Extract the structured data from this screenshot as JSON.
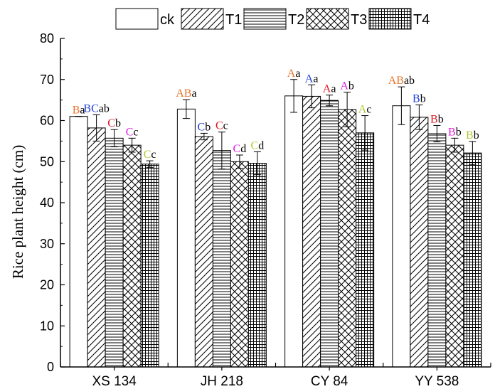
{
  "chart_data": {
    "type": "bar",
    "ylabel": "Rice plant height (cm)",
    "xlabel": "",
    "ylim": [
      0,
      80
    ],
    "yticks": [
      0,
      10,
      20,
      30,
      40,
      50,
      60,
      70,
      80
    ],
    "categories": [
      "XS 134",
      "JH 218",
      "CY 84",
      "YY 538"
    ],
    "series": [
      {
        "name": "ck",
        "pattern": "none",
        "values": [
          61.0,
          62.8,
          66.0,
          63.6
        ],
        "errors": [
          0.0,
          2.3,
          4.0,
          4.6
        ]
      },
      {
        "name": "T1",
        "pattern": "diagonal",
        "values": [
          58.2,
          56.1,
          65.9,
          60.8
        ],
        "errors": [
          3.2,
          0.8,
          2.8,
          3.0
        ]
      },
      {
        "name": "T2",
        "pattern": "horizontal",
        "values": [
          55.7,
          52.7,
          64.9,
          56.8
        ],
        "errors": [
          2.1,
          4.5,
          1.3,
          2.0
        ]
      },
      {
        "name": "T3",
        "pattern": "crosshatch",
        "values": [
          54.0,
          50.0,
          62.7,
          54.0
        ],
        "errors": [
          1.7,
          1.6,
          4.2,
          1.7
        ]
      },
      {
        "name": "T4",
        "pattern": "grid",
        "values": [
          49.4,
          49.6,
          57.0,
          52.1
        ],
        "errors": [
          0.8,
          2.8,
          4.2,
          2.8
        ]
      }
    ],
    "significance_labels": [
      [
        [
          {
            "t": "B",
            "c": "#E8742A"
          },
          {
            "t": "a",
            "c": "#000000"
          }
        ],
        [
          {
            "t": "BC",
            "c": "#1F3FD6"
          },
          {
            "t": "ab",
            "c": "#000000"
          }
        ],
        [
          {
            "t": "C",
            "c": "#E0141E"
          },
          {
            "t": "b",
            "c": "#000000"
          }
        ],
        [
          {
            "t": "C",
            "c": "#E020E0"
          },
          {
            "t": "c",
            "c": "#000000"
          }
        ],
        [
          {
            "t": "C",
            "c": "#B5C832"
          },
          {
            "t": "c",
            "c": "#000000"
          }
        ]
      ],
      [
        [
          {
            "t": "AB",
            "c": "#E8742A"
          },
          {
            "t": "a",
            "c": "#000000"
          }
        ],
        [
          {
            "t": "C",
            "c": "#1F3FD6"
          },
          {
            "t": "b",
            "c": "#000000"
          }
        ],
        [
          {
            "t": "C",
            "c": "#E0141E"
          },
          {
            "t": "c",
            "c": "#000000"
          }
        ],
        [
          {
            "t": "C",
            "c": "#E020E0"
          },
          {
            "t": "d",
            "c": "#000000"
          }
        ],
        [
          {
            "t": "C",
            "c": "#B5C832"
          },
          {
            "t": "d",
            "c": "#000000"
          }
        ]
      ],
      [
        [
          {
            "t": "A",
            "c": "#E8742A"
          },
          {
            "t": "a",
            "c": "#000000"
          }
        ],
        [
          {
            "t": "A",
            "c": "#1F3FD6"
          },
          {
            "t": "a",
            "c": "#000000"
          }
        ],
        [
          {
            "t": "A",
            "c": "#E0141E"
          },
          {
            "t": "a",
            "c": "#000000"
          }
        ],
        [
          {
            "t": "A",
            "c": "#E020E0"
          },
          {
            "t": "b",
            "c": "#000000"
          }
        ],
        [
          {
            "t": "A",
            "c": "#B5C832"
          },
          {
            "t": "c",
            "c": "#000000"
          }
        ]
      ],
      [
        [
          {
            "t": "AB",
            "c": "#E8742A"
          },
          {
            "t": "ab",
            "c": "#000000"
          }
        ],
        [
          {
            "t": "B",
            "c": "#1F3FD6"
          },
          {
            "t": "b",
            "c": "#000000"
          }
        ],
        [
          {
            "t": "B",
            "c": "#E0141E"
          },
          {
            "t": "b",
            "c": "#000000"
          }
        ],
        [
          {
            "t": "B",
            "c": "#E020E0"
          },
          {
            "t": "b",
            "c": "#000000"
          }
        ],
        [
          {
            "t": "B",
            "c": "#B5C832"
          },
          {
            "t": "b",
            "c": "#000000"
          }
        ]
      ]
    ],
    "legend_position": "top",
    "grid": false
  }
}
